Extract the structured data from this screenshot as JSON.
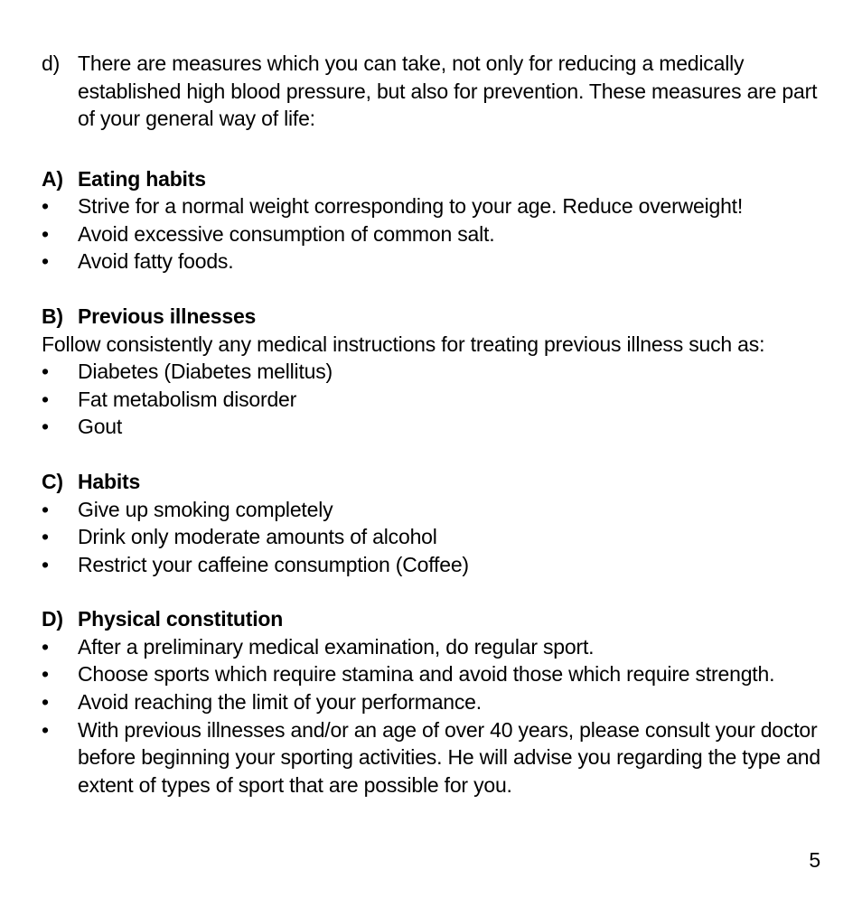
{
  "colors": {
    "background": "#ffffff",
    "text": "#000000"
  },
  "typography": {
    "body_fontsize_pt": 17,
    "heading_weight": 700,
    "body_weight": 400,
    "line_height": 1.33,
    "font_family": "Helvetica Neue / Helvetica / Arial"
  },
  "intro": {
    "marker": "d)",
    "text": "There are measures which you can take, not only for reducing a medically established high blood pressure, but also for prevention. These measures are part of your general way of life:"
  },
  "sections": [
    {
      "marker": "A)",
      "title": "Eating habits",
      "lead": null,
      "items": [
        "Strive for a normal weight corresponding to your age. Reduce overweight!",
        "Avoid excessive consumption of common salt.",
        "Avoid fatty foods."
      ]
    },
    {
      "marker": "B)",
      "title": "Previous illnesses",
      "lead": "Follow consistently any medical instructions for treating previous illness such as:",
      "items": [
        "Diabetes (Diabetes mellitus)",
        "Fat metabolism disorder",
        "Gout"
      ]
    },
    {
      "marker": "C)",
      "title": "Habits",
      "lead": null,
      "items": [
        "Give up smoking completely",
        "Drink only moderate amounts of alcohol",
        "Restrict your caffeine consumption (Coffee)"
      ]
    },
    {
      "marker": "D)",
      "title": "Physical constitution",
      "lead": null,
      "items": [
        "After a preliminary medical examination, do regular sport.",
        "Choose sports which require stamina and avoid those which require strength.",
        "Avoid reaching the limit of your performance.",
        "With previous illnesses and/or an age of over 40 years, please consult your doctor before beginning your sporting activities. He will advise you regarding the type and extent of types of sport that are possible for you."
      ]
    }
  ],
  "page_number": "5"
}
